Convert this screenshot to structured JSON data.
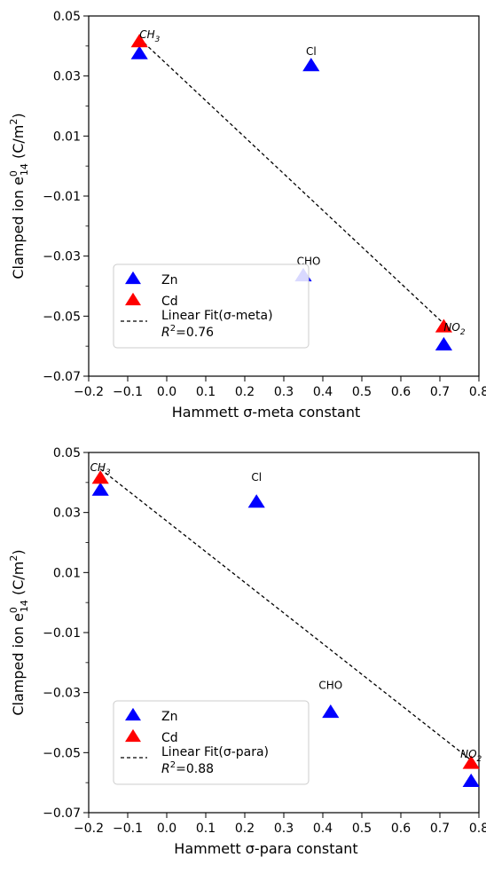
{
  "chart_data": [
    {
      "type": "scatter",
      "xlabel": "Hammett σ-meta constant",
      "ylabel_main": "Clamped ion e",
      "ylabel_sub": "14",
      "ylabel_sup": "0",
      "ylabel_unit": " (C/m",
      "ylabel_unit_sup": "2",
      "ylabel_unit_end": ")",
      "xlim": [
        -0.2,
        0.8
      ],
      "ylim": [
        -0.07,
        0.05
      ],
      "xticks": [
        "−0.2",
        "−0.1",
        "0.0",
        "0.1",
        "0.2",
        "0.3",
        "0.4",
        "0.5",
        "0.6",
        "0.7",
        "0.8"
      ],
      "xtick_values": [
        -0.2,
        -0.1,
        0.0,
        0.1,
        0.2,
        0.3,
        0.4,
        0.5,
        0.6,
        0.7,
        0.8
      ],
      "yticks": [
        "0.05",
        "0.03",
        "0.01",
        "−0.01",
        "−0.03",
        "−0.05",
        "−0.07"
      ],
      "ytick_values": [
        0.05,
        0.03,
        0.01,
        -0.01,
        -0.03,
        -0.05,
        -0.07
      ],
      "series": [
        {
          "name": "Zn",
          "color": "#0000ff",
          "x": [
            -0.07,
            0.37,
            0.35,
            0.71
          ],
          "y": [
            0.0375,
            0.0335,
            -0.0365,
            -0.0595
          ]
        },
        {
          "name": "Cd",
          "color": "#ff0000",
          "x": [
            -0.07,
            0.71
          ],
          "y": [
            0.0415,
            -0.0535
          ]
        }
      ],
      "fit": {
        "name": "Linear Fit(σ-meta)",
        "r2_label": "=0.76",
        "x": [
          -0.07,
          0.71
        ],
        "y": [
          0.0425,
          -0.0525
        ]
      },
      "annotations": [
        {
          "text": "CH",
          "sub": "3",
          "x": -0.07,
          "y": 0.0415,
          "anchor": "start",
          "dx": 0,
          "dy": -4
        },
        {
          "text": "Cl",
          "sub": "",
          "x": 0.37,
          "y": 0.0335,
          "anchor": "middle",
          "dx": 0,
          "dy": -12
        },
        {
          "text": "CHO",
          "sub": "",
          "x": 0.35,
          "y": -0.0365,
          "anchor": "middle",
          "dx": 6,
          "dy": -12
        },
        {
          "text": "NO",
          "sub": "2",
          "x": 0.71,
          "y": -0.0535,
          "anchor": "start",
          "dx": 0,
          "dy": 5
        }
      ],
      "legend_placement": "lower-left"
    },
    {
      "type": "scatter",
      "xlabel": "Hammett σ-para constant",
      "ylabel_main": "Clamped ion e",
      "ylabel_sub": "14",
      "ylabel_sup": "0",
      "ylabel_unit": " (C/m",
      "ylabel_unit_sup": "2",
      "ylabel_unit_end": ")",
      "xlim": [
        -0.2,
        0.8
      ],
      "ylim": [
        -0.07,
        0.05
      ],
      "xticks": [
        "−0.2",
        "−0.1",
        "0.0",
        "0.1",
        "0.2",
        "0.3",
        "0.4",
        "0.5",
        "0.6",
        "0.7",
        "0.8"
      ],
      "xtick_values": [
        -0.2,
        -0.1,
        0.0,
        0.1,
        0.2,
        0.3,
        0.4,
        0.5,
        0.6,
        0.7,
        0.8
      ],
      "yticks": [
        "0.05",
        "0.03",
        "0.01",
        "−0.01",
        "−0.03",
        "−0.05",
        "−0.07"
      ],
      "ytick_values": [
        0.05,
        0.03,
        0.01,
        -0.01,
        -0.03,
        -0.05,
        -0.07
      ],
      "series": [
        {
          "name": "Zn",
          "color": "#0000ff",
          "x": [
            -0.17,
            0.23,
            0.42,
            0.78
          ],
          "y": [
            0.0375,
            0.0335,
            -0.0365,
            -0.0595
          ]
        },
        {
          "name": "Cd",
          "color": "#ff0000",
          "x": [
            -0.17,
            0.78
          ],
          "y": [
            0.0415,
            -0.0535
          ]
        }
      ],
      "fit": {
        "name": "Linear Fit(σ-para)",
        "r2_label": "=0.88",
        "x": [
          -0.17,
          0.78
        ],
        "y": [
          0.0445,
          -0.0525
        ]
      },
      "annotations": [
        {
          "text": "CH",
          "sub": "3",
          "x": -0.17,
          "y": 0.0415,
          "anchor": "middle",
          "dx": 0,
          "dy": -8
        },
        {
          "text": "Cl",
          "sub": "",
          "x": 0.23,
          "y": 0.0335,
          "anchor": "middle",
          "dx": 0,
          "dy": -24
        },
        {
          "text": "CHO",
          "sub": "",
          "x": 0.42,
          "y": -0.0365,
          "anchor": "middle",
          "dx": 0,
          "dy": -26
        },
        {
          "text": "NO",
          "sub": "2",
          "x": 0.78,
          "y": -0.0535,
          "anchor": "middle",
          "dx": 0,
          "dy": -6
        }
      ],
      "legend_placement": "lower-left"
    }
  ]
}
